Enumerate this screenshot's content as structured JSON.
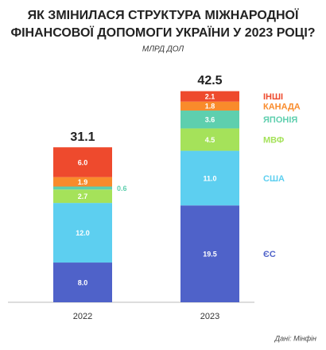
{
  "chart_data": {
    "type": "stacked_bar",
    "title": [
      "ЯК ЗМІНИЛАСЯ СТРУКТУРА МІЖНАРОДНОЇ",
      "ФІНАНСОВОЇ ДОПОМОГИ УКРАЇНИ У 2023 РОЦІ?"
    ],
    "subtitle": "МЛРД ДОЛ",
    "source": "Дані: Мінфін",
    "categories": [
      "2022",
      "2023"
    ],
    "totals": [
      31.1,
      42.5
    ],
    "ylim": [
      0,
      45
    ],
    "series": [
      {
        "name": "ЄС",
        "color": "#4f62c9",
        "values": [
          8.0,
          19.5
        ],
        "value_labels": [
          "8.0",
          "19.5"
        ]
      },
      {
        "name": "США",
        "color": "#5dcff0",
        "values": [
          12.0,
          11.0
        ],
        "value_labels": [
          "12.0",
          "11.0"
        ]
      },
      {
        "name": "МВФ",
        "color": "#a5e25a",
        "values": [
          2.7,
          4.5
        ],
        "value_labels": [
          "2.7",
          "4.5"
        ]
      },
      {
        "name": "ЯПОНІЯ",
        "color": "#5ecfae",
        "values": [
          0.6,
          3.6
        ],
        "value_labels": [
          "0.6",
          "3.6"
        ]
      },
      {
        "name": "КАНАДА",
        "color": "#f98b2b",
        "values": [
          1.9,
          1.8
        ],
        "value_labels": [
          "1.9",
          "1.8"
        ]
      },
      {
        "name": "ІНШІ",
        "color": "#ee4a2d",
        "values": [
          6.0,
          2.1
        ],
        "value_labels": [
          "6.0",
          "2.1"
        ]
      }
    ]
  }
}
